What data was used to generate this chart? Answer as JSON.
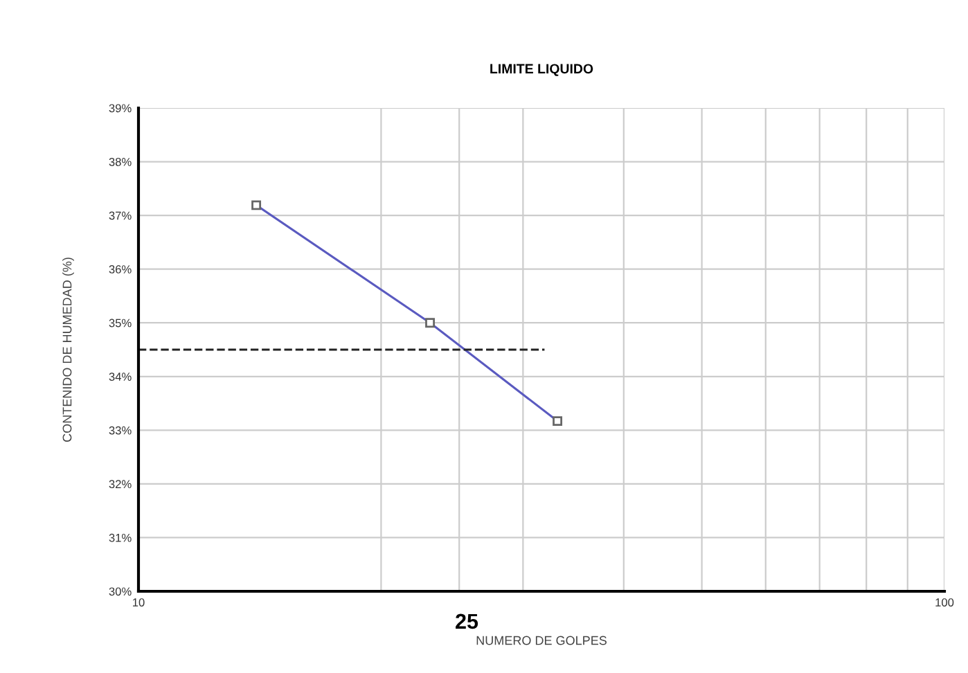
{
  "chart_data": {
    "type": "line",
    "title": "LIMITE LIQUIDO",
    "xlabel": "NUMERO DE GOLPES",
    "ylabel": "CONTENIDO DE HUMEDAD (%)",
    "log": "x",
    "xlim": [
      10,
      100
    ],
    "ylim": [
      30,
      39
    ],
    "xticks": [
      10,
      {
        "value": 20,
        "label": null
      },
      {
        "value": 25,
        "label": null
      },
      {
        "value": 30,
        "label": null
      },
      {
        "value": 40,
        "label": null
      },
      {
        "value": 50,
        "label": null
      },
      {
        "value": 60,
        "label": null
      },
      {
        "value": 70,
        "label": null
      },
      {
        "value": 80,
        "label": null
      },
      {
        "value": 90,
        "label": null
      },
      100
    ],
    "yticks": [
      {
        "value": 30,
        "label": "30%"
      },
      {
        "value": 31,
        "label": "31%"
      },
      {
        "value": 32,
        "label": "32%"
      },
      {
        "value": 33,
        "label": "33%"
      },
      {
        "value": 34,
        "label": "34%"
      },
      {
        "value": 35,
        "label": "35%"
      },
      {
        "value": 36,
        "label": "36%"
      },
      {
        "value": 37,
        "label": "37%"
      },
      {
        "value": 38,
        "label": "38%"
      },
      {
        "value": 39,
        "label": "39%"
      }
    ],
    "grid": true,
    "legend": false,
    "series": [
      {
        "color": "#5a5ac0",
        "x": [
          14.0,
          23.0,
          33.1
        ],
        "values": [
          37.19,
          35.0,
          33.17
        ],
        "marker": "square",
        "line_style": "solid"
      },
      {
        "color": "#222222",
        "x": [
          10,
          31.9
        ],
        "values": [
          34.5,
          34.5
        ],
        "marker": "none",
        "line_style": "dashed"
      }
    ],
    "annotations": [
      "25"
    ]
  }
}
